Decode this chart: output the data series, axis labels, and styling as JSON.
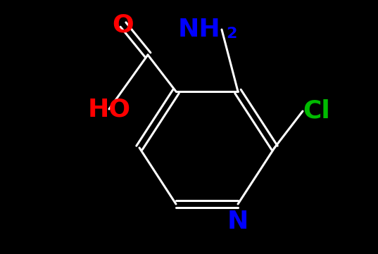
{
  "background_color": "#000000",
  "bond_color": "#ffffff",
  "atom_colors": {
    "O": "#ff0000",
    "NH2": "#0000ff",
    "Cl": "#00bb00",
    "N_ring": "#0000ff",
    "HO": "#ff0000",
    "C": "#ffffff"
  },
  "figsize": [
    5.37,
    3.61
  ],
  "dpi": 100,
  "lw": 2.2,
  "fs": 26,
  "fs_sub": 16
}
